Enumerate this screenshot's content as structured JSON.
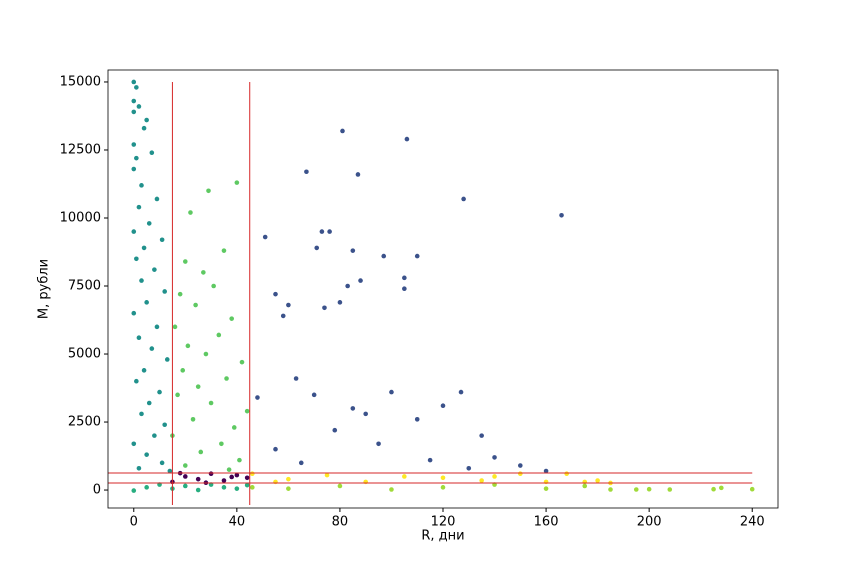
{
  "chart_data": {
    "type": "scatter",
    "x_label": "R, дни",
    "y_label": "M, рубли",
    "xlim": [
      -10,
      250
    ],
    "ylim": [
      -660,
      15440
    ],
    "xticks": [
      0,
      40,
      80,
      120,
      160,
      200,
      240
    ],
    "yticks": [
      0,
      2500,
      5000,
      7500,
      10000,
      12500,
      15000
    ],
    "vlines": [
      15,
      45
    ],
    "vline_range": [
      -550,
      15000
    ],
    "hlines": [
      257,
      625
    ],
    "hline_range": [
      -10,
      240
    ],
    "line_color": "#d62728",
    "series": [
      {
        "color": "#21918c",
        "x": [
          0,
          1,
          0,
          2,
          0,
          5,
          4,
          0,
          7,
          1,
          0,
          3,
          9,
          2,
          6,
          0,
          11,
          4,
          1,
          8,
          3,
          12,
          5,
          0,
          9,
          2,
          7,
          13,
          4,
          1,
          10,
          6,
          3,
          12,
          8,
          0,
          5,
          11,
          2,
          14
        ],
        "values": [
          15000,
          14800,
          14300,
          14100,
          13900,
          13600,
          13300,
          12700,
          12400,
          12200,
          11800,
          11200,
          10700,
          10400,
          9800,
          9500,
          9200,
          8900,
          8500,
          8100,
          7700,
          7300,
          6900,
          6500,
          6000,
          5600,
          5200,
          4800,
          4400,
          4000,
          3600,
          3200,
          2800,
          2400,
          2000,
          1700,
          1300,
          1000,
          800,
          700
        ]
      },
      {
        "color": "#5ec962",
        "x": [
          40,
          29,
          22,
          35,
          20,
          27,
          31,
          18,
          24,
          38,
          16,
          33,
          21,
          28,
          42,
          19,
          36,
          25,
          17,
          30,
          44,
          23,
          39,
          15,
          34,
          26,
          41,
          20,
          37
        ],
        "values": [
          11300,
          11000,
          10200,
          8800,
          8400,
          8000,
          7500,
          7200,
          6800,
          6300,
          6000,
          5700,
          5300,
          5000,
          4700,
          4400,
          4100,
          3800,
          3500,
          3200,
          2900,
          2600,
          2300,
          2000,
          1700,
          1400,
          1100,
          900,
          750
        ]
      },
      {
        "color": "#3b528b",
        "x": [
          81,
          106,
          67,
          87,
          128,
          166,
          51,
          73,
          76,
          71,
          85,
          110,
          97,
          88,
          105,
          105,
          83,
          55,
          60,
          74,
          80,
          58,
          63,
          70,
          100,
          127,
          120,
          90,
          110,
          135,
          78,
          95,
          140,
          150,
          160,
          55,
          65,
          115,
          130,
          48,
          85
        ],
        "values": [
          13200,
          12900,
          11700,
          11600,
          10700,
          10100,
          9300,
          9500,
          9500,
          8900,
          8800,
          8600,
          8600,
          7700,
          7800,
          7400,
          7500,
          7200,
          6800,
          6700,
          6900,
          6400,
          4100,
          3500,
          3600,
          3600,
          3100,
          2800,
          2600,
          2000,
          2200,
          1700,
          1200,
          900,
          700,
          1500,
          1000,
          1100,
          800,
          3400,
          3000
        ]
      },
      {
        "color": "#440154",
        "x": [
          15,
          20,
          25,
          30,
          35,
          40,
          44,
          18,
          28,
          38
        ],
        "values": [
          300,
          500,
          400,
          600,
          350,
          550,
          450,
          620,
          270,
          480
        ]
      },
      {
        "color": "#fde725",
        "x": [
          46,
          60,
          75,
          90,
          105,
          120,
          135,
          150,
          160,
          168,
          175,
          180,
          185,
          55,
          140
        ],
        "values": [
          600,
          400,
          550,
          300,
          500,
          450,
          350,
          600,
          300,
          600,
          300,
          350,
          260,
          300,
          500
        ]
      },
      {
        "color": "#a0da39",
        "x": [
          46,
          60,
          80,
          100,
          120,
          140,
          160,
          175,
          185,
          195,
          200,
          208,
          225,
          228,
          240
        ],
        "values": [
          100,
          50,
          150,
          20,
          100,
          200,
          50,
          150,
          20,
          20,
          30,
          20,
          30,
          80,
          30
        ]
      },
      {
        "color": "#28ae80",
        "x": [
          0,
          5,
          10,
          15,
          20,
          25,
          30,
          35,
          40,
          44
        ],
        "values": [
          -20,
          100,
          200,
          50,
          150,
          0,
          200,
          100,
          50,
          180
        ]
      }
    ]
  }
}
